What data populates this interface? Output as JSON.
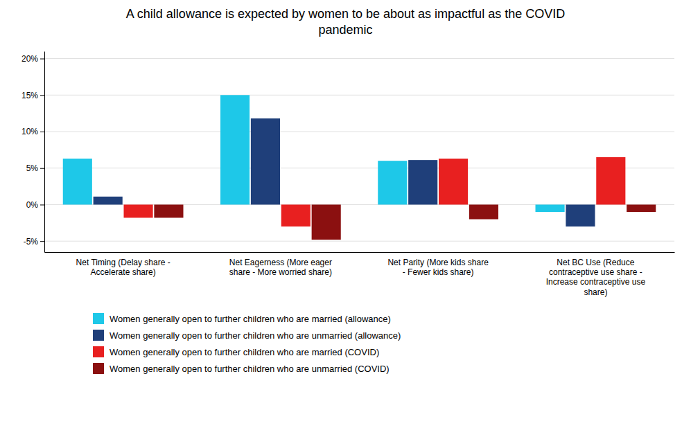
{
  "chart_data": {
    "type": "bar",
    "title": "A child allowance is expected by women to be about as impactful as the COVID\npandemic",
    "categories": [
      "Net Timing (Delay share -\nAccelerate share)",
      "Net Eagerness (More eager\nshare - More worried share)",
      "Net Parity (More kids share\n- Fewer kids share)",
      "Net BC Use (Reduce\ncontraceptive use share -\nIncrease contraceptive use\nshare)"
    ],
    "series": [
      {
        "name": "Women generally open to further children who are married (allowance)",
        "color": "#1EC8E8",
        "values": [
          0.063,
          0.15,
          0.06,
          -0.01
        ]
      },
      {
        "name": "Women generally open to further children who are unmarried (allowance)",
        "color": "#1F3F7A",
        "values": [
          0.011,
          0.118,
          0.061,
          -0.03
        ]
      },
      {
        "name": "Women generally open to further children who are married (COVID)",
        "color": "#E82020",
        "values": [
          -0.018,
          -0.03,
          0.063,
          0.065
        ]
      },
      {
        "name": "Women generally open to further children who are unmarried (COVID)",
        "color": "#8B1010",
        "values": [
          -0.018,
          -0.048,
          -0.02,
          -0.01
        ]
      }
    ],
    "ylim": [
      -0.065,
      0.21
    ],
    "yticks": [
      {
        "value": -0.05,
        "label": "-5%"
      },
      {
        "value": 0.0,
        "label": "0%"
      },
      {
        "value": 0.05,
        "label": "5%"
      },
      {
        "value": 0.1,
        "label": "10%"
      },
      {
        "value": 0.15,
        "label": "15%"
      },
      {
        "value": 0.2,
        "label": "20%"
      }
    ],
    "grid": true,
    "legend": "bottom"
  }
}
